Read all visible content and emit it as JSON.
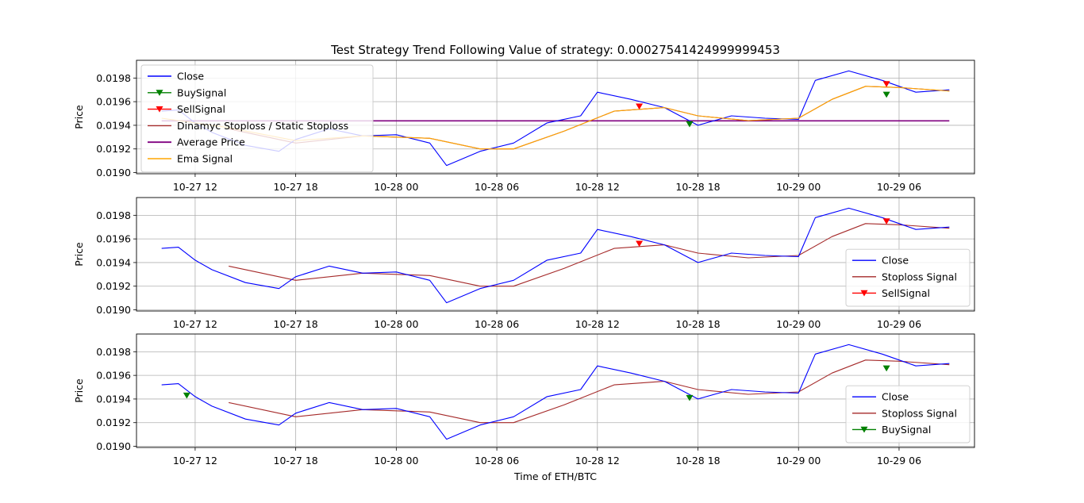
{
  "figure": {
    "title": "Test Strategy Trend Following  Value of strategy: 0.00027541424999999453",
    "xlabel": "Time of ETH/BTC"
  },
  "colors": {
    "close": "#0000ff",
    "buy": "#008000",
    "sell": "#ff0000",
    "stoploss": "#a52a2a",
    "average": "#800080",
    "ema": "#ffa500",
    "grid": "#b0b0b0"
  },
  "chart_data": [
    {
      "type": "line",
      "panel": "top",
      "ylabel": "Price",
      "xlim": [
        "10-27 08:30",
        "10-29 10:30"
      ],
      "ylim": [
        0.01899,
        0.01995
      ],
      "x_ticks": [
        "10-27 12",
        "10-27 18",
        "10-28 00",
        "10-28 06",
        "10-28 12",
        "10-28 18",
        "10-29 00",
        "10-29 06"
      ],
      "y_ticks": [
        "0.0190",
        "0.0192",
        "0.0194",
        "0.0196",
        "0.0198"
      ],
      "grid": true,
      "legend": {
        "position": "upper-left",
        "entries": [
          "Close",
          "BuySignal",
          "SellSignal",
          "Dinamyc Stoploss / Static Stoploss",
          "Average Price",
          "Ema Signal"
        ]
      },
      "series": [
        {
          "name": "Close",
          "x": [
            "10-27 10:00",
            "10-27 11:00",
            "10-27 12:00",
            "10-27 13:00",
            "10-27 15:00",
            "10-27 17:00",
            "10-27 18:00",
            "10-27 20:00",
            "10-27 22:00",
            "10-28 00:00",
            "10-28 02:00",
            "10-28 03:00",
            "10-28 05:00",
            "10-28 07:00",
            "10-28 09:00",
            "10-28 11:00",
            "10-28 12:00",
            "10-28 14:00",
            "10-28 16:00",
            "10-28 18:00",
            "10-28 20:00",
            "10-28 22:00",
            "10-29 00:00",
            "10-29 01:00",
            "10-29 03:00",
            "10-29 05:00",
            "10-29 07:00",
            "10-29 09:00"
          ],
          "values": [
            0.01952,
            0.01953,
            0.01942,
            0.01934,
            0.01923,
            0.01918,
            0.01928,
            0.01937,
            0.01931,
            0.01932,
            0.01925,
            0.01906,
            0.01918,
            0.01925,
            0.01942,
            0.01948,
            0.01968,
            0.01962,
            0.01955,
            0.0194,
            0.01948,
            0.01946,
            0.01945,
            0.01978,
            0.01986,
            0.01978,
            0.01968,
            0.0197
          ]
        },
        {
          "name": "Dinamyc Stoploss / Static Stoploss",
          "x": [
            "10-27 14:00",
            "10-27 18:00",
            "10-27 22:00",
            "10-28 02:00",
            "10-28 05:00",
            "10-28 07:00",
            "10-28 10:00",
            "10-28 13:00",
            "10-28 16:00",
            "10-28 18:00",
            "10-28 21:00",
            "10-29 00:00",
            "10-29 02:00",
            "10-29 04:00",
            "10-29 06:00",
            "10-29 09:00"
          ],
          "values": [
            0.01937,
            0.01925,
            0.01931,
            0.01929,
            0.0192,
            0.0192,
            0.01935,
            0.01952,
            0.01955,
            0.01948,
            0.01944,
            0.01946,
            0.01962,
            0.01973,
            0.01972,
            0.01969
          ]
        },
        {
          "name": "Average Price",
          "x": [
            "10-27 10:00",
            "10-29 09:00"
          ],
          "values": [
            0.019438,
            0.019438
          ]
        },
        {
          "name": "Ema Signal",
          "x": [
            "10-27 10:00",
            "10-27 14:00",
            "10-27 18:00",
            "10-27 22:00",
            "10-28 02:00",
            "10-28 05:00",
            "10-28 07:00",
            "10-28 10:00",
            "10-28 13:00",
            "10-28 16:00",
            "10-28 18:00",
            "10-28 21:00",
            "10-29 00:00",
            "10-29 02:00",
            "10-29 04:00",
            "10-29 06:00",
            "10-29 09:00"
          ],
          "values": [
            0.01946,
            0.01938,
            0.01927,
            0.01931,
            0.01929,
            0.0192,
            0.0192,
            0.01935,
            0.01952,
            0.01955,
            0.01948,
            0.01944,
            0.01946,
            0.01962,
            0.01973,
            0.01972,
            0.01969
          ]
        },
        {
          "name": "BuySignal",
          "x": [
            "10-28 17:30",
            "10-29 05:15"
          ],
          "values": [
            0.01941,
            0.01966
          ]
        },
        {
          "name": "SellSignal",
          "x": [
            "10-28 14:30",
            "10-29 05:15"
          ],
          "values": [
            0.01956,
            0.01975
          ]
        }
      ]
    },
    {
      "type": "line",
      "panel": "middle",
      "ylabel": "Price",
      "xlim": [
        "10-27 08:30",
        "10-29 10:30"
      ],
      "ylim": [
        0.01899,
        0.01995
      ],
      "x_ticks": [
        "10-27 12",
        "10-27 18",
        "10-28 00",
        "10-28 06",
        "10-28 12",
        "10-28 18",
        "10-29 00",
        "10-29 06"
      ],
      "y_ticks": [
        "0.0190",
        "0.0192",
        "0.0194",
        "0.0196",
        "0.0198"
      ],
      "grid": true,
      "legend": {
        "position": "lower-right",
        "entries": [
          "Close",
          "Stoploss Signal",
          "SellSignal"
        ]
      },
      "series": [
        {
          "name": "Close",
          "x": [
            "10-27 10:00",
            "10-27 11:00",
            "10-27 12:00",
            "10-27 13:00",
            "10-27 15:00",
            "10-27 17:00",
            "10-27 18:00",
            "10-27 20:00",
            "10-27 22:00",
            "10-28 00:00",
            "10-28 02:00",
            "10-28 03:00",
            "10-28 05:00",
            "10-28 07:00",
            "10-28 09:00",
            "10-28 11:00",
            "10-28 12:00",
            "10-28 14:00",
            "10-28 16:00",
            "10-28 18:00",
            "10-28 20:00",
            "10-28 22:00",
            "10-29 00:00",
            "10-29 01:00",
            "10-29 03:00",
            "10-29 05:00",
            "10-29 07:00",
            "10-29 09:00"
          ],
          "values": [
            0.01952,
            0.01953,
            0.01942,
            0.01934,
            0.01923,
            0.01918,
            0.01928,
            0.01937,
            0.01931,
            0.01932,
            0.01925,
            0.01906,
            0.01918,
            0.01925,
            0.01942,
            0.01948,
            0.01968,
            0.01962,
            0.01955,
            0.0194,
            0.01948,
            0.01946,
            0.01945,
            0.01978,
            0.01986,
            0.01978,
            0.01968,
            0.0197
          ]
        },
        {
          "name": "Stoploss Signal",
          "x": [
            "10-27 14:00",
            "10-27 18:00",
            "10-27 22:00",
            "10-28 02:00",
            "10-28 05:00",
            "10-28 07:00",
            "10-28 10:00",
            "10-28 13:00",
            "10-28 16:00",
            "10-28 18:00",
            "10-28 21:00",
            "10-29 00:00",
            "10-29 02:00",
            "10-29 04:00",
            "10-29 06:00",
            "10-29 09:00"
          ],
          "values": [
            0.01937,
            0.01925,
            0.01931,
            0.01929,
            0.0192,
            0.0192,
            0.01935,
            0.01952,
            0.01955,
            0.01948,
            0.01944,
            0.01946,
            0.01962,
            0.01973,
            0.01972,
            0.01969
          ]
        },
        {
          "name": "SellSignal",
          "x": [
            "10-28 14:30",
            "10-29 05:15"
          ],
          "values": [
            0.01956,
            0.01975
          ]
        }
      ]
    },
    {
      "type": "line",
      "panel": "bottom",
      "ylabel": "Price",
      "xlabel": "Time of ETH/BTC",
      "xlim": [
        "10-27 08:30",
        "10-29 10:30"
      ],
      "ylim": [
        0.01899,
        0.01995
      ],
      "x_ticks": [
        "10-27 12",
        "10-27 18",
        "10-28 00",
        "10-28 06",
        "10-28 12",
        "10-28 18",
        "10-29 00",
        "10-29 06"
      ],
      "y_ticks": [
        "0.0190",
        "0.0192",
        "0.0194",
        "0.0196",
        "0.0198"
      ],
      "grid": true,
      "legend": {
        "position": "lower-right",
        "entries": [
          "Close",
          "Stoploss Signal",
          "BuySignal"
        ]
      },
      "series": [
        {
          "name": "Close",
          "x": [
            "10-27 10:00",
            "10-27 11:00",
            "10-27 12:00",
            "10-27 13:00",
            "10-27 15:00",
            "10-27 17:00",
            "10-27 18:00",
            "10-27 20:00",
            "10-27 22:00",
            "10-28 00:00",
            "10-28 02:00",
            "10-28 03:00",
            "10-28 05:00",
            "10-28 07:00",
            "10-28 09:00",
            "10-28 11:00",
            "10-28 12:00",
            "10-28 14:00",
            "10-28 16:00",
            "10-28 18:00",
            "10-28 20:00",
            "10-28 22:00",
            "10-29 00:00",
            "10-29 01:00",
            "10-29 03:00",
            "10-29 05:00",
            "10-29 07:00",
            "10-29 09:00"
          ],
          "values": [
            0.01952,
            0.01953,
            0.01942,
            0.01934,
            0.01923,
            0.01918,
            0.01928,
            0.01937,
            0.01931,
            0.01932,
            0.01925,
            0.01906,
            0.01918,
            0.01925,
            0.01942,
            0.01948,
            0.01968,
            0.01962,
            0.01955,
            0.0194,
            0.01948,
            0.01946,
            0.01945,
            0.01978,
            0.01986,
            0.01978,
            0.01968,
            0.0197
          ]
        },
        {
          "name": "Stoploss Signal",
          "x": [
            "10-27 14:00",
            "10-27 18:00",
            "10-27 22:00",
            "10-28 02:00",
            "10-28 05:00",
            "10-28 07:00",
            "10-28 10:00",
            "10-28 13:00",
            "10-28 16:00",
            "10-28 18:00",
            "10-28 21:00",
            "10-29 00:00",
            "10-29 02:00",
            "10-29 04:00",
            "10-29 06:00",
            "10-29 09:00"
          ],
          "values": [
            0.01937,
            0.01925,
            0.01931,
            0.01929,
            0.0192,
            0.0192,
            0.01935,
            0.01952,
            0.01955,
            0.01948,
            0.01944,
            0.01946,
            0.01962,
            0.01973,
            0.01972,
            0.01969
          ]
        },
        {
          "name": "BuySignal",
          "x": [
            "10-27 11:30",
            "10-28 17:30",
            "10-29 05:15"
          ],
          "values": [
            0.01943,
            0.01941,
            0.01966
          ]
        }
      ]
    }
  ]
}
